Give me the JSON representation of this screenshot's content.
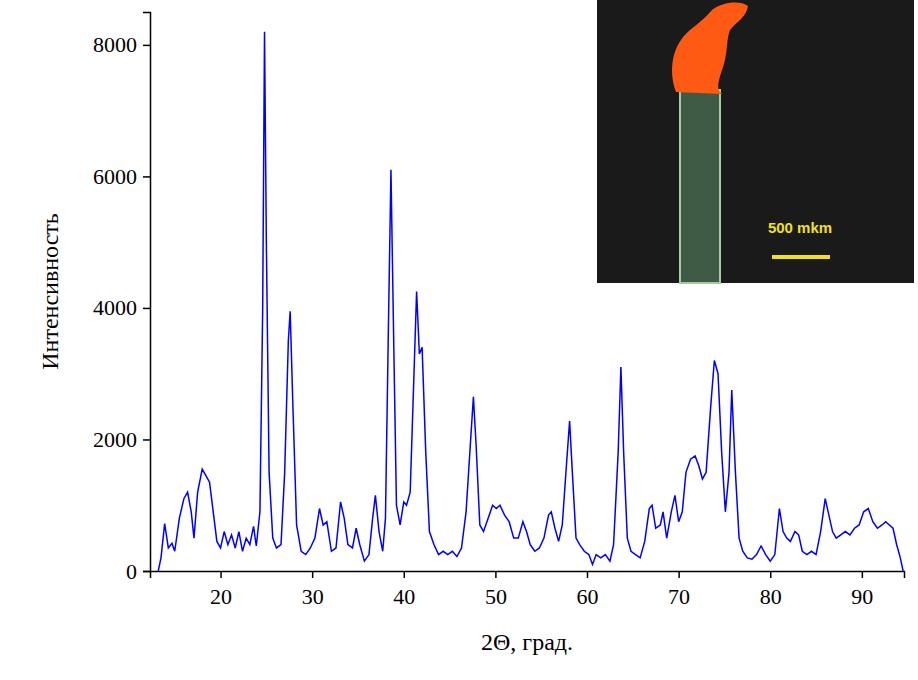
{
  "chart_data": {
    "type": "line",
    "x_label": "2Θ, град.",
    "y_label": "Интенсивность",
    "color": "#0000ff",
    "xlim": [
      12.3,
      94.6
    ],
    "xticks": [
      20,
      30,
      40,
      50,
      60,
      70,
      80,
      90
    ],
    "ylim": [
      0,
      8500
    ],
    "yticks": [
      0,
      2000,
      4000,
      6000,
      8000
    ],
    "grid": false,
    "annotations": [
      {
        "text": "500 mkm"
      }
    ],
    "x": [
      13.2,
      13.5,
      13.9,
      14.3,
      14.7,
      15.0,
      15.5,
      16.0,
      16.4,
      16.8,
      17.1,
      17.5,
      18.0,
      18.4,
      18.8,
      19.2,
      19.6,
      20.0,
      20.4,
      20.8,
      21.2,
      21.6,
      22.0,
      22.4,
      22.8,
      23.2,
      23.6,
      23.9,
      24.3,
      24.6,
      24.8,
      25.0,
      25.3,
      25.7,
      26.1,
      26.6,
      27.0,
      27.4,
      27.6,
      27.9,
      28.3,
      28.8,
      29.3,
      29.8,
      30.3,
      30.8,
      31.2,
      31.6,
      32.1,
      32.6,
      33.1,
      33.5,
      33.9,
      34.4,
      34.8,
      35.2,
      35.7,
      36.2,
      36.6,
      36.9,
      37.3,
      37.7,
      38.0,
      38.3,
      38.6,
      38.9,
      39.2,
      39.6,
      40.0,
      40.3,
      40.7,
      41.0,
      41.4,
      41.7,
      42.0,
      42.4,
      42.8,
      43.3,
      43.8,
      44.3,
      44.8,
      45.3,
      45.8,
      46.3,
      46.8,
      47.3,
      47.6,
      47.9,
      48.3,
      48.7,
      49.2,
      49.7,
      50.1,
      50.5,
      51.0,
      51.5,
      52.0,
      52.5,
      53.0,
      53.4,
      53.8,
      54.3,
      54.8,
      55.3,
      55.8,
      56.1,
      56.5,
      56.9,
      57.3,
      57.8,
      58.1,
      58.4,
      58.8,
      59.2,
      59.7,
      60.2,
      60.6,
      61.0,
      61.5,
      62.0,
      62.5,
      62.9,
      63.4,
      63.7,
      64.0,
      64.4,
      64.8,
      65.3,
      65.8,
      66.3,
      66.8,
      67.1,
      67.5,
      68.0,
      68.3,
      68.7,
      69.2,
      69.6,
      70.0,
      70.4,
      70.8,
      71.3,
      71.8,
      72.2,
      72.6,
      73.0,
      73.5,
      73.9,
      74.3,
      74.7,
      75.1,
      75.5,
      75.8,
      76.2,
      76.6,
      77.0,
      77.5,
      78.0,
      78.5,
      79.0,
      79.5,
      80.0,
      80.5,
      81.0,
      81.4,
      81.8,
      82.2,
      82.7,
      83.1,
      83.5,
      84.0,
      84.5,
      85.0,
      85.5,
      86.0,
      86.4,
      86.8,
      87.2,
      87.7,
      88.2,
      88.7,
      89.2,
      89.7,
      90.2,
      90.7,
      91.2,
      91.7,
      92.2,
      92.6,
      93.0,
      93.4,
      93.8,
      94.2,
      94.5
    ],
    "values": [
      0,
      200,
      720,
      350,
      420,
      300,
      800,
      1100,
      1200,
      900,
      500,
      1200,
      1550,
      1450,
      1350,
      900,
      450,
      350,
      600,
      400,
      550,
      350,
      600,
      300,
      500,
      400,
      680,
      380,
      900,
      4000,
      8200,
      5000,
      1500,
      500,
      350,
      400,
      1500,
      3500,
      3950,
      2500,
      700,
      300,
      250,
      350,
      500,
      950,
      700,
      750,
      300,
      350,
      1050,
      800,
      400,
      350,
      650,
      400,
      150,
      250,
      800,
      1150,
      600,
      300,
      800,
      3500,
      6100,
      3500,
      1000,
      700,
      1050,
      1000,
      1200,
      2500,
      4250,
      3300,
      3400,
      1800,
      600,
      400,
      250,
      300,
      250,
      300,
      220,
      350,
      900,
      2000,
      2650,
      1900,
      700,
      600,
      800,
      1000,
      950,
      1000,
      850,
      750,
      500,
      500,
      750,
      600,
      400,
      300,
      350,
      500,
      850,
      900,
      650,
      450,
      700,
      1700,
      2280,
      1500,
      500,
      400,
      300,
      250,
      100,
      250,
      200,
      250,
      150,
      400,
      1800,
      3100,
      1800,
      500,
      300,
      250,
      200,
      450,
      950,
      1000,
      650,
      700,
      900,
      500,
      900,
      1150,
      750,
      900,
      1500,
      1700,
      1750,
      1600,
      1400,
      1500,
      2500,
      3200,
      3000,
      1800,
      900,
      1500,
      2750,
      1500,
      500,
      300,
      200,
      180,
      250,
      380,
      250,
      150,
      250,
      950,
      600,
      500,
      450,
      600,
      550,
      300,
      250,
      300,
      250,
      600,
      1100,
      850,
      600,
      500,
      550,
      600,
      550,
      650,
      700,
      900,
      950,
      750,
      650,
      700,
      750,
      700,
      650,
      400,
      200,
      0
    ]
  }
}
